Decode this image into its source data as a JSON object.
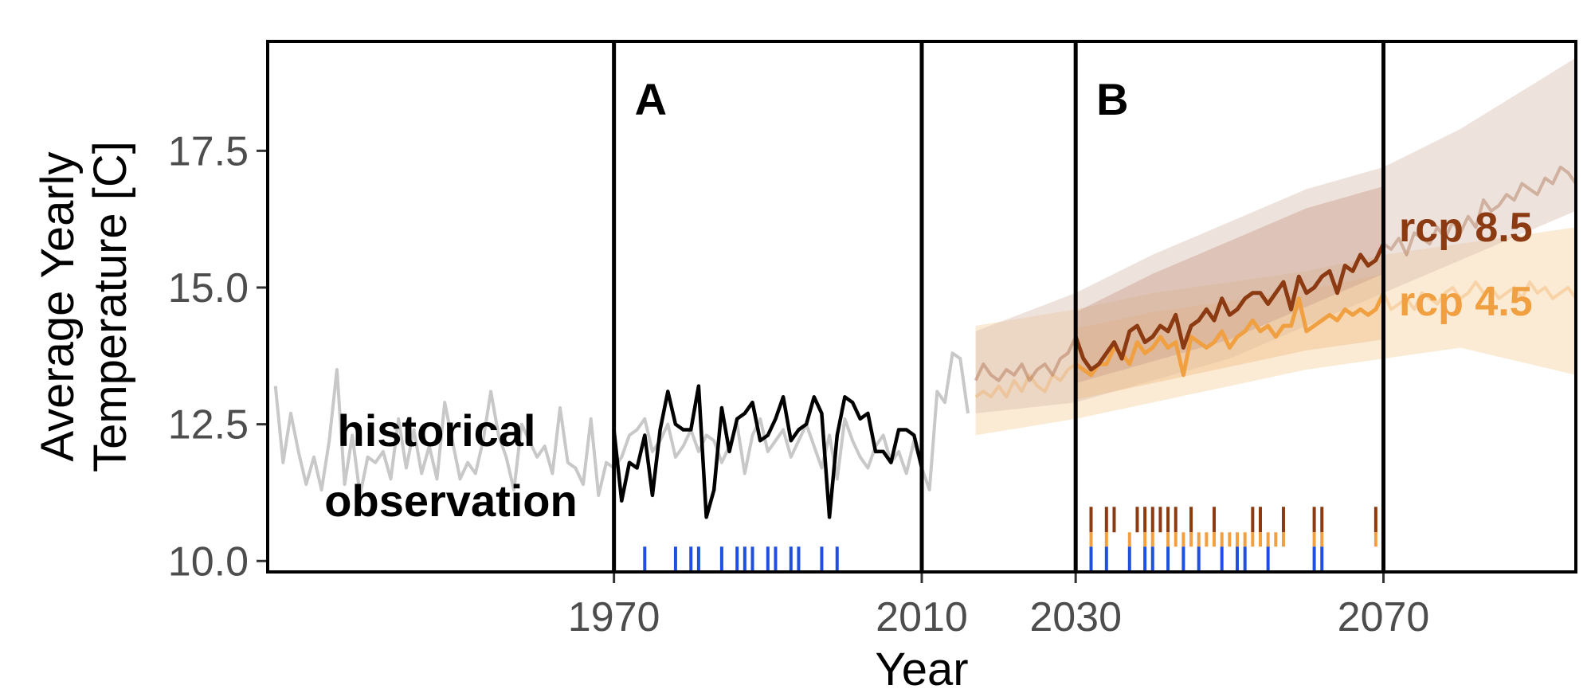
{
  "chart_data": {
    "type": "line",
    "title": "",
    "xlabel": "Year",
    "ylabel_lines": [
      "Average Yearly",
      "Temperature [C]"
    ],
    "xlim": [
      1925,
      2095
    ],
    "ylim": [
      9.8,
      19.5
    ],
    "x_ticks": [
      1970,
      2010,
      2030,
      2070
    ],
    "y_ticks": [
      10.0,
      12.5,
      15.0,
      17.5
    ],
    "y_tick_labels": [
      "10.0",
      "12.5",
      "15.0",
      "17.5"
    ],
    "periods": [
      {
        "label": "A",
        "start": 1970,
        "end": 2010
      },
      {
        "label": "B",
        "start": 2030,
        "end": 2070
      }
    ],
    "annotation_lines": [
      "historical",
      "observation"
    ],
    "colors": {
      "historical": "#c8c8c8",
      "period_a": "#000000",
      "rcp45": "#f0a040",
      "rcp85": "#8b3a12",
      "rcp45_band": "#f7d9b0",
      "rcp85_band": "#d9bfb2",
      "event_blue": "#1f4fe0"
    },
    "series": [
      {
        "name": "historical observation",
        "x": [
          1926,
          1927,
          1928,
          1929,
          1930,
          1931,
          1932,
          1933,
          1934,
          1935,
          1936,
          1937,
          1938,
          1939,
          1940,
          1941,
          1942,
          1943,
          1944,
          1945,
          1946,
          1947,
          1948,
          1949,
          1950,
          1951,
          1952,
          1953,
          1954,
          1955,
          1956,
          1957,
          1958,
          1959,
          1960,
          1961,
          1962,
          1963,
          1964,
          1965,
          1966,
          1967,
          1968,
          1969,
          1970,
          1971,
          1972,
          1973,
          1974,
          1975,
          1976,
          1977,
          1978,
          1979,
          1980,
          1981,
          1982,
          1983,
          1984,
          1985,
          1986,
          1987,
          1988,
          1989,
          1990,
          1991,
          1992,
          1993,
          1994,
          1995,
          1996,
          1997,
          1998,
          1999,
          2000,
          2001,
          2002,
          2003,
          2004,
          2005,
          2006,
          2007,
          2008,
          2009,
          2010,
          2011,
          2012,
          2013,
          2014,
          2015,
          2016
        ],
        "y": [
          13.2,
          11.8,
          12.7,
          12.0,
          11.4,
          11.9,
          11.3,
          12.2,
          13.5,
          11.4,
          12.3,
          11.2,
          11.9,
          11.8,
          12.0,
          11.5,
          12.6,
          11.7,
          12.4,
          11.6,
          12.1,
          11.5,
          12.9,
          12.2,
          11.5,
          11.8,
          11.6,
          12.2,
          13.1,
          12.3,
          11.9,
          11.3,
          12.5,
          12.2,
          11.9,
          12.1,
          11.6,
          12.8,
          11.8,
          11.7,
          11.4,
          12.6,
          11.2,
          11.8,
          11.7,
          11.9,
          12.3,
          12.4,
          12.6,
          12.0,
          12.2,
          12.5,
          11.9,
          12.1,
          12.4,
          12.0,
          12.3,
          12.2,
          11.8,
          12.1,
          12.5,
          11.6,
          12.3,
          12.6,
          12.0,
          12.2,
          12.4,
          11.9,
          12.2,
          12.5,
          12.1,
          11.7,
          12.3,
          11.5,
          12.6,
          12.2,
          11.9,
          11.7,
          12.1,
          12.3,
          11.8,
          12.0,
          11.6,
          12.2,
          11.7,
          11.3,
          13.1,
          12.9,
          13.8,
          13.7,
          12.7
        ]
      },
      {
        "name": "period A",
        "x": [
          1970,
          1971,
          1972,
          1973,
          1974,
          1975,
          1976,
          1977,
          1978,
          1979,
          1980,
          1981,
          1982,
          1983,
          1984,
          1985,
          1986,
          1987,
          1988,
          1989,
          1990,
          1991,
          1992,
          1993,
          1994,
          1995,
          1996,
          1997,
          1998,
          1999,
          2000,
          2001,
          2002,
          2003,
          2004,
          2005,
          2006,
          2007,
          2008,
          2009,
          2010
        ],
        "y": [
          12.4,
          11.1,
          11.8,
          11.7,
          12.3,
          11.2,
          12.4,
          13.1,
          12.5,
          12.4,
          12.4,
          13.2,
          10.8,
          11.3,
          12.8,
          12.0,
          12.6,
          12.7,
          12.9,
          12.2,
          12.3,
          12.6,
          13.0,
          12.2,
          12.4,
          12.5,
          13.0,
          12.7,
          10.8,
          12.3,
          13.0,
          12.9,
          12.6,
          12.7,
          12.0,
          12.0,
          11.8,
          12.4,
          12.4,
          12.3,
          11.7
        ]
      },
      {
        "name": "rcp 4.5",
        "x": [
          2017,
          2018,
          2019,
          2020,
          2021,
          2022,
          2023,
          2024,
          2025,
          2026,
          2027,
          2028,
          2029,
          2030,
          2031,
          2032,
          2033,
          2034,
          2035,
          2036,
          2037,
          2038,
          2039,
          2040,
          2041,
          2042,
          2043,
          2044,
          2045,
          2046,
          2047,
          2048,
          2049,
          2050,
          2051,
          2052,
          2053,
          2054,
          2055,
          2056,
          2057,
          2058,
          2059,
          2060,
          2061,
          2062,
          2063,
          2064,
          2065,
          2066,
          2067,
          2068,
          2069,
          2070,
          2071,
          2072,
          2073,
          2074,
          2075,
          2076,
          2077,
          2078,
          2079,
          2080,
          2081,
          2082,
          2083,
          2084,
          2085,
          2086,
          2087,
          2088,
          2089,
          2090,
          2091,
          2092,
          2093,
          2094,
          2095
        ],
        "y": [
          13.0,
          13.1,
          13.0,
          13.2,
          13.0,
          13.3,
          13.1,
          13.4,
          13.2,
          13.1,
          13.4,
          13.3,
          13.5,
          13.6,
          13.5,
          13.4,
          13.6,
          13.6,
          13.9,
          13.8,
          13.6,
          14.0,
          13.8,
          13.9,
          14.1,
          13.9,
          14.0,
          13.4,
          14.1,
          14.0,
          13.9,
          14.0,
          14.2,
          13.9,
          14.1,
          14.2,
          14.4,
          14.2,
          14.3,
          14.1,
          14.3,
          14.3,
          14.8,
          14.2,
          14.3,
          14.4,
          14.5,
          14.4,
          14.6,
          14.5,
          14.6,
          14.5,
          14.6,
          14.9,
          14.6,
          14.7,
          14.8,
          14.6,
          14.9,
          14.8,
          14.7,
          14.9,
          15.0,
          14.8,
          14.9,
          15.1,
          14.9,
          15.0,
          14.8,
          14.9,
          15.0,
          14.8,
          15.1,
          14.9,
          15.0,
          14.8,
          14.9,
          15.0,
          14.8
        ]
      },
      {
        "name": "rcp 8.5",
        "x": [
          2017,
          2018,
          2019,
          2020,
          2021,
          2022,
          2023,
          2024,
          2025,
          2026,
          2027,
          2028,
          2029,
          2030,
          2031,
          2032,
          2033,
          2034,
          2035,
          2036,
          2037,
          2038,
          2039,
          2040,
          2041,
          2042,
          2043,
          2044,
          2045,
          2046,
          2047,
          2048,
          2049,
          2050,
          2051,
          2052,
          2053,
          2054,
          2055,
          2056,
          2057,
          2058,
          2059,
          2060,
          2061,
          2062,
          2063,
          2064,
          2065,
          2066,
          2067,
          2068,
          2069,
          2070,
          2071,
          2072,
          2073,
          2074,
          2075,
          2076,
          2077,
          2078,
          2079,
          2080,
          2081,
          2082,
          2083,
          2084,
          2085,
          2086,
          2087,
          2088,
          2089,
          2090,
          2091,
          2092,
          2093,
          2094,
          2095
        ],
        "y": [
          13.3,
          13.6,
          13.4,
          13.3,
          13.5,
          13.4,
          13.6,
          13.3,
          13.5,
          13.6,
          13.4,
          13.7,
          13.8,
          14.1,
          13.7,
          13.5,
          13.6,
          13.8,
          14.0,
          13.7,
          14.2,
          14.3,
          14.0,
          14.1,
          14.3,
          14.2,
          14.5,
          13.9,
          14.3,
          14.4,
          14.6,
          14.4,
          14.8,
          14.5,
          14.6,
          14.8,
          14.9,
          14.9,
          14.7,
          14.9,
          15.1,
          14.6,
          15.2,
          14.9,
          15.0,
          15.2,
          15.3,
          14.9,
          15.4,
          15.3,
          15.6,
          15.4,
          15.5,
          15.8,
          15.7,
          15.9,
          15.6,
          16.0,
          15.9,
          15.8,
          16.1,
          15.9,
          16.2,
          16.0,
          16.3,
          16.1,
          16.6,
          16.4,
          16.5,
          16.7,
          16.6,
          16.9,
          16.8,
          16.7,
          17.0,
          16.9,
          17.2,
          17.1,
          16.9
        ]
      }
    ],
    "bands": [
      {
        "name": "rcp 4.5",
        "x": [
          2017,
          2030,
          2040,
          2050,
          2060,
          2070,
          2080,
          2095
        ],
        "lower": [
          12.3,
          12.6,
          12.9,
          13.2,
          13.5,
          13.7,
          13.9,
          13.4
        ],
        "upper": [
          14.3,
          14.6,
          14.9,
          15.1,
          15.3,
          15.6,
          15.8,
          16.1
        ]
      },
      {
        "name": "rcp 8.5",
        "x": [
          2017,
          2030,
          2040,
          2050,
          2060,
          2070,
          2080,
          2095
        ],
        "lower": [
          12.7,
          12.9,
          13.3,
          13.7,
          14.3,
          14.9,
          15.5,
          16.4
        ],
        "upper": [
          14.2,
          14.9,
          15.6,
          16.2,
          16.8,
          17.2,
          17.9,
          19.2
        ]
      }
    ],
    "event_ticks": {
      "blue": [
        1974,
        1978,
        1980,
        1981,
        1984,
        1986,
        1987,
        1988,
        1990,
        1991,
        1993,
        1994,
        1997,
        1999,
        2032,
        2034,
        2037,
        2039,
        2040,
        2042,
        2044,
        2046,
        2049,
        2051,
        2052,
        2055,
        2061,
        2062
      ],
      "orange": [
        2032,
        2034,
        2037,
        2039,
        2040,
        2042,
        2043,
        2044,
        2045,
        2046,
        2047,
        2048,
        2049,
        2050,
        2051,
        2052,
        2053,
        2054,
        2055,
        2056,
        2057,
        2061,
        2062,
        2069
      ],
      "darkred": [
        2032,
        2034,
        2035,
        2038,
        2039,
        2040,
        2041,
        2042,
        2043,
        2045,
        2048,
        2053,
        2054,
        2057,
        2061,
        2062,
        2069
      ]
    }
  }
}
